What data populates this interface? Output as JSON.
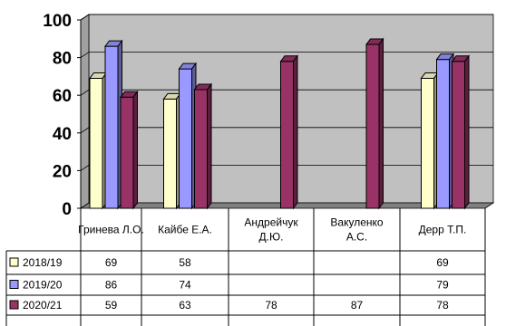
{
  "chart_data": {
    "type": "bar",
    "categories": [
      "Гринева Л.О.",
      "Кайбе Е.А.",
      "Андрейчук Д.Ю.",
      "Вакуленко А.С.",
      "Дерр Т.П."
    ],
    "category_lines": [
      [
        "Гринева Л.О."
      ],
      [
        "Кайбе Е.А."
      ],
      [
        "Андрейчук",
        "Д.Ю."
      ],
      [
        "Вакуленко",
        "А.С."
      ],
      [
        "Дерр Т.П."
      ]
    ],
    "series": [
      {
        "name": "2018/19",
        "color": "#ffffcc",
        "values": [
          69,
          58,
          null,
          null,
          69
        ]
      },
      {
        "name": "2019/20",
        "color": "#9999ff",
        "values": [
          86,
          74,
          null,
          null,
          79
        ]
      },
      {
        "name": "2020/21",
        "color": "#993366",
        "values": [
          59,
          63,
          78,
          87,
          78
        ]
      }
    ],
    "yticks": [
      "0",
      "20",
      "40",
      "60",
      "80",
      "100"
    ],
    "ylim": [
      0,
      100
    ],
    "grid": true,
    "legend": "data-table",
    "style": "3d-bar",
    "wall_color": "#c0c0c0",
    "floor_color": "#808080"
  }
}
